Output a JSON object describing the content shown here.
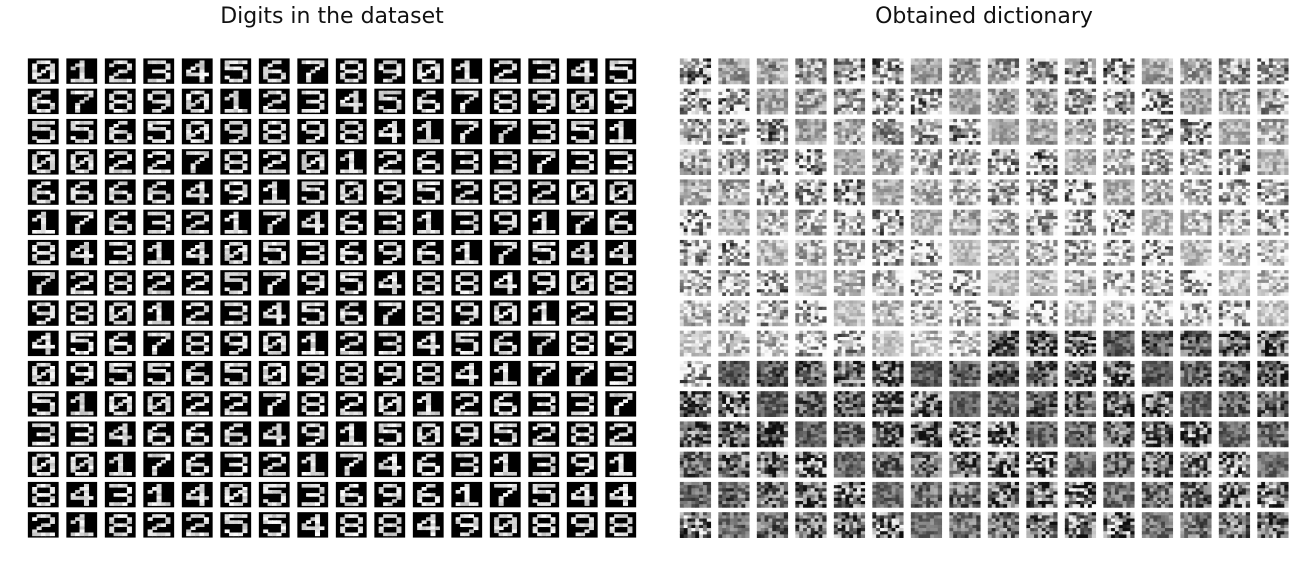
{
  "panels": [
    {
      "title": "Digits in the dataset",
      "rows": 16,
      "cols": 16,
      "background": "#000000",
      "foreground": "#ffffff",
      "digit_grid": [
        [
          0,
          1,
          2,
          3,
          4,
          5,
          6,
          7,
          8,
          9,
          0,
          1,
          2,
          3,
          4,
          5
        ],
        [
          6,
          7,
          8,
          9,
          0,
          1,
          2,
          3,
          4,
          5,
          6,
          7,
          8,
          9,
          0,
          9
        ],
        [
          5,
          5,
          6,
          5,
          0,
          9,
          8,
          9,
          8,
          4,
          1,
          7,
          7,
          3,
          5,
          1
        ],
        [
          0,
          0,
          2,
          2,
          7,
          8,
          2,
          0,
          1,
          2,
          6,
          3,
          3,
          7,
          3,
          3
        ],
        [
          6,
          6,
          6,
          6,
          4,
          9,
          1,
          5,
          0,
          9,
          5,
          2,
          8,
          2,
          0,
          0
        ],
        [
          1,
          7,
          6,
          3,
          2,
          1,
          7,
          4,
          6,
          3,
          1,
          3,
          9,
          1,
          7,
          6
        ],
        [
          8,
          4,
          3,
          1,
          4,
          0,
          5,
          3,
          6,
          9,
          6,
          1,
          7,
          5,
          4,
          4
        ],
        [
          7,
          2,
          8,
          2,
          2,
          5,
          7,
          9,
          5,
          4,
          8,
          8,
          4,
          9,
          0,
          8
        ],
        [
          9,
          8,
          0,
          1,
          2,
          3,
          4,
          5,
          6,
          7,
          8,
          9,
          0,
          1,
          2,
          3
        ],
        [
          4,
          5,
          6,
          7,
          8,
          9,
          0,
          1,
          2,
          3,
          4,
          5,
          6,
          7,
          8,
          9
        ],
        [
          0,
          9,
          5,
          5,
          6,
          5,
          0,
          9,
          8,
          9,
          8,
          4,
          1,
          7,
          7,
          3
        ],
        [
          5,
          1,
          0,
          0,
          2,
          2,
          7,
          8,
          2,
          0,
          1,
          2,
          6,
          3,
          3,
          7
        ],
        [
          3,
          3,
          4,
          6,
          6,
          6,
          4,
          9,
          1,
          5,
          0,
          9,
          5,
          2,
          8,
          2
        ],
        [
          0,
          0,
          1,
          7,
          6,
          3,
          2,
          1,
          7,
          4,
          6,
          3,
          1,
          3,
          9,
          1
        ],
        [
          8,
          4,
          3,
          1,
          4,
          0,
          5,
          3,
          6,
          9,
          6,
          1,
          7,
          5,
          4,
          4
        ],
        [
          2,
          1,
          8,
          2,
          2,
          5,
          5,
          4,
          8,
          8,
          4,
          9,
          0,
          8,
          9,
          8
        ]
      ]
    },
    {
      "title": "Obtained dictionary",
      "rows": 16,
      "cols": 16,
      "colormap": "gray"
    }
  ]
}
